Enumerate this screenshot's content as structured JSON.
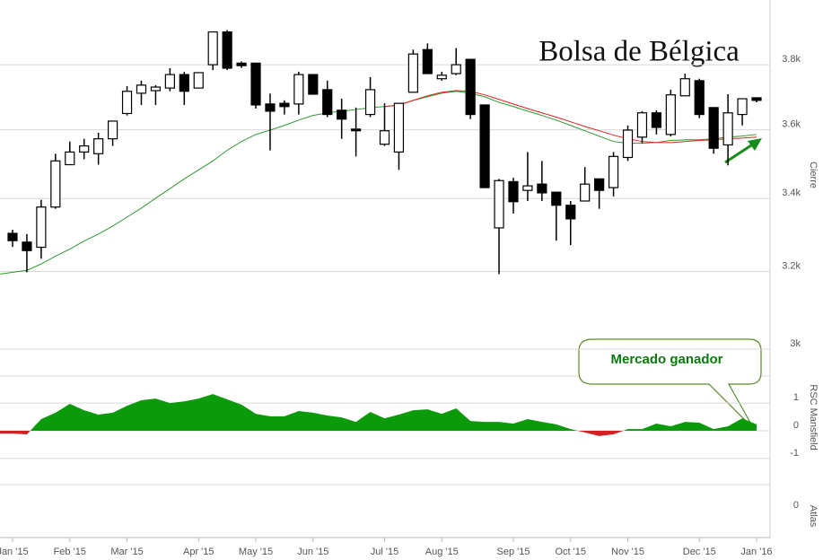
{
  "chart_data": {
    "type": "candlestick",
    "title": "Bolsa de Bélgica",
    "categories": [
      "Jan '15",
      null,
      null,
      null,
      "Feb '15",
      null,
      null,
      null,
      "Mar '15",
      null,
      null,
      null,
      null,
      "Apr '15",
      null,
      null,
      null,
      "May '15",
      null,
      null,
      null,
      "Jun '15",
      null,
      null,
      null,
      null,
      "Jul '15",
      null,
      null,
      null,
      "Aug '15",
      null,
      null,
      null,
      null,
      "Sep '15",
      null,
      null,
      null,
      "Oct '15",
      null,
      null,
      null,
      "Nov '15",
      null,
      null,
      null,
      null,
      "Dec '15",
      null,
      null,
      null,
      "Jan '16"
    ],
    "open": [
      3303,
      3279,
      3265,
      3376,
      3497,
      3534,
      3529,
      3573,
      3649,
      3711,
      3719,
      3727,
      3769,
      3727,
      3800,
      3905,
      3805,
      3805,
      3678,
      3680,
      3678,
      3769,
      3722,
      3659,
      3602,
      3646,
      3557,
      3534,
      3714,
      3848,
      3756,
      3772,
      3817,
      3675,
      3318,
      3448,
      3423,
      3441,
      3418,
      3381,
      3393,
      3456,
      3431,
      3518,
      3578,
      3651,
      3586,
      3703,
      3750,
      3667,
      3555,
      3646,
      3697
    ],
    "high": [
      3313,
      3301,
      3396,
      3529,
      3565,
      3573,
      3591,
      3626,
      3733,
      3750,
      3736,
      3789,
      3778,
      3775,
      3905,
      3911,
      3810,
      3805,
      3710,
      3689,
      3778,
      3769,
      3750,
      3694,
      3667,
      3761,
      3680,
      3680,
      3848,
      3868,
      3778,
      3853,
      3817,
      3675,
      3456,
      3459,
      3534,
      3508,
      3418,
      3393,
      3490,
      3456,
      3534,
      3613,
      3656,
      3659,
      3722,
      3772,
      3756,
      3667,
      3708,
      3694,
      3697
    ],
    "low": [
      3266,
      3198,
      3234,
      3371,
      3497,
      3513,
      3497,
      3552,
      3643,
      3675,
      3675,
      3717,
      3675,
      3727,
      3783,
      3783,
      3790,
      3664,
      3539,
      3646,
      3646,
      3708,
      3638,
      3573,
      3521,
      3638,
      3552,
      3482,
      3714,
      3772,
      3750,
      3767,
      3632,
      3431,
      3193,
      3358,
      3393,
      3393,
      3283,
      3271,
      3393,
      3371,
      3406,
      3508,
      3560,
      3586,
      3580,
      3703,
      3635,
      3529,
      3495,
      3613,
      3683
    ],
    "close": [
      3283,
      3256,
      3376,
      3508,
      3534,
      3552,
      3573,
      3626,
      3717,
      3736,
      3730,
      3769,
      3717,
      3775,
      3905,
      3789,
      3797,
      3675,
      3656,
      3670,
      3769,
      3708,
      3646,
      3632,
      3597,
      3722,
      3597,
      3680,
      3834,
      3772,
      3767,
      3800,
      3646,
      3431,
      3451,
      3391,
      3436,
      3416,
      3381,
      3343,
      3441,
      3423,
      3521,
      3599,
      3651,
      3607,
      3706,
      3756,
      3646,
      3545,
      3651,
      3694,
      3689
    ],
    "up_color": "#ffffff",
    "down_color": "#000000",
    "lines": [
      {
        "color": "#2e9a2e",
        "values": [
          3193,
          3203,
          3220,
          3241,
          3260,
          3282,
          3301,
          3323,
          3348,
          3373,
          3401,
          3428,
          3456,
          3482,
          3508,
          3539,
          3565,
          3586,
          3599,
          3613,
          3629,
          3643,
          3651,
          3656,
          3661,
          3667,
          3670,
          3675,
          3689,
          3700,
          3711,
          3717,
          3711,
          3700,
          3683,
          3670,
          3656,
          3643,
          3629,
          3613,
          3597,
          3581,
          3565,
          3560,
          3560,
          3562,
          3568,
          3570,
          3570,
          3573,
          3578,
          3581,
          3586
        ]
      },
      {
        "color": "#e02020",
        "values": [
          null,
          null,
          null,
          null,
          null,
          null,
          null,
          null,
          null,
          null,
          null,
          null,
          null,
          null,
          null,
          null,
          null,
          null,
          null,
          null,
          null,
          null,
          null,
          null,
          null,
          null,
          3670,
          3675,
          3689,
          3703,
          3714,
          3719,
          3717,
          3706,
          3692,
          3678,
          3664,
          3651,
          3638,
          3624,
          3610,
          3597,
          3584,
          3573,
          3565,
          3562,
          3562,
          3565,
          3568,
          3570,
          3573,
          3575,
          3578
        ]
      }
    ],
    "y_label": "Cierre",
    "yscale": "log",
    "ylim": [
      3000,
      4010
    ],
    "yticks": [
      {
        "value": 3000,
        "label": "3k"
      },
      {
        "value": 3200,
        "label": "3.2k"
      },
      {
        "value": 3400,
        "label": "3.4k"
      },
      {
        "value": 3600,
        "label": "3.6k"
      },
      {
        "value": 3800,
        "label": "3.8k"
      }
    ],
    "grid": true,
    "rsc": {
      "label": "RSC Mansfield",
      "pos_color": "#0a9a0a",
      "neg_color": "#d42020",
      "ylim": [
        -1.94,
        1.94
      ],
      "yticks": [
        -1,
        0,
        1
      ],
      "values": [
        -0.1,
        -0.13,
        0.42,
        0.65,
        0.97,
        0.74,
        0.58,
        0.65,
        0.9,
        1.1,
        1.16,
        1.0,
        1.06,
        1.16,
        1.32,
        1.13,
        0.94,
        0.61,
        0.52,
        0.52,
        0.71,
        0.65,
        0.55,
        0.48,
        0.32,
        0.68,
        0.45,
        0.58,
        0.74,
        0.77,
        0.61,
        0.81,
        0.35,
        0.32,
        0.32,
        0.26,
        0.42,
        0.32,
        0.23,
        0.06,
        -0.06,
        -0.19,
        -0.13,
        0.06,
        0.06,
        0.26,
        0.16,
        0.32,
        0.29,
        0.06,
        0.16,
        0.45,
        0.23
      ]
    },
    "atlas": {
      "label": "Atlas",
      "yticks": [
        0
      ]
    },
    "annotation": "Mercado ganador"
  }
}
